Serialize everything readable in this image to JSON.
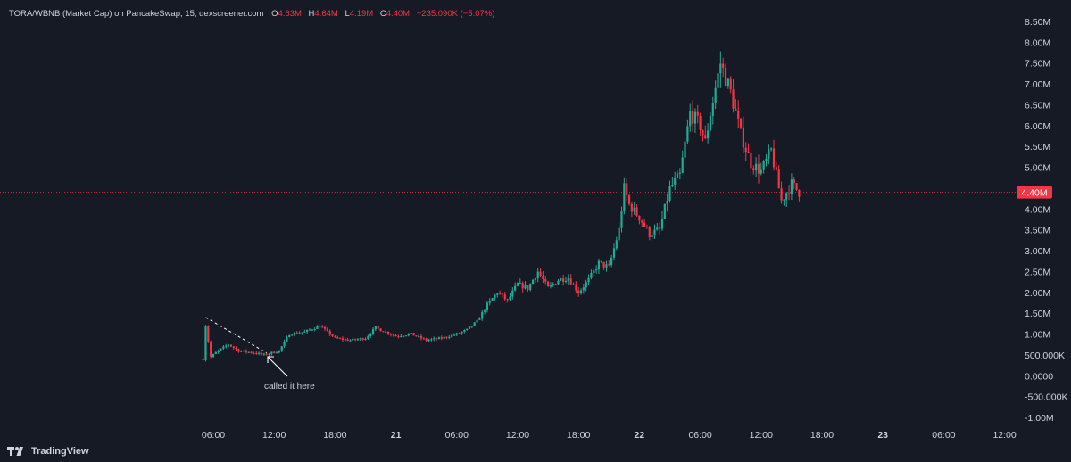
{
  "legend": {
    "symbol": "TORA/WBNB (Market Cap) on PancakeSwap, 15, dexscreener.com",
    "open_key": "O",
    "open": "4.63M",
    "high_key": "H",
    "high": "4.64M",
    "low_key": "L",
    "low": "4.19M",
    "close_key": "C",
    "close": "4.40M",
    "change": "−235.090K (−5.07%)"
  },
  "annotation": {
    "text": "called it here"
  },
  "branding": {
    "label": "TradingView"
  },
  "colors": {
    "background": "#161a25",
    "up": "#22ab94",
    "down": "#f23645",
    "axis_text": "#d1d4dc",
    "price_line": "#f23645"
  },
  "chart_data": {
    "type": "candlestick",
    "title": "",
    "xlabel": "",
    "ylabel": "",
    "ylim": [
      -1000000,
      8500000
    ],
    "grid": false,
    "current_value": 4400000,
    "current_value_label": "4.40M",
    "y_ticks": [
      {
        "value": 8500000,
        "label": "8.50M"
      },
      {
        "value": 8000000,
        "label": "8.00M"
      },
      {
        "value": 7500000,
        "label": "7.50M"
      },
      {
        "value": 7000000,
        "label": "7.00M"
      },
      {
        "value": 6500000,
        "label": "6.50M"
      },
      {
        "value": 6000000,
        "label": "6.00M"
      },
      {
        "value": 5500000,
        "label": "5.50M"
      },
      {
        "value": 5000000,
        "label": "5.00M"
      },
      {
        "value": 4000000,
        "label": "4.00M"
      },
      {
        "value": 3500000,
        "label": "3.50M"
      },
      {
        "value": 3000000,
        "label": "3.00M"
      },
      {
        "value": 2500000,
        "label": "2.50M"
      },
      {
        "value": 2000000,
        "label": "2.00M"
      },
      {
        "value": 1500000,
        "label": "1.50M"
      },
      {
        "value": 1000000,
        "label": "1.00M"
      },
      {
        "value": 500000,
        "label": "500.000K"
      },
      {
        "value": 0,
        "label": "0.0000"
      },
      {
        "value": -500000,
        "label": "-500.000K"
      },
      {
        "value": -1000000,
        "label": "-1.00M"
      }
    ],
    "x_ticks": [
      {
        "label": "06:00",
        "day": false
      },
      {
        "label": "12:00",
        "day": false
      },
      {
        "label": "18:00",
        "day": false
      },
      {
        "label": "21",
        "day": true
      },
      {
        "label": "06:00",
        "day": false
      },
      {
        "label": "12:00",
        "day": false
      },
      {
        "label": "18:00",
        "day": false
      },
      {
        "label": "22",
        "day": true
      },
      {
        "label": "06:00",
        "day": false
      },
      {
        "label": "12:00",
        "day": false
      },
      {
        "label": "18:00",
        "day": false
      },
      {
        "label": "23",
        "day": true
      },
      {
        "label": "06:00",
        "day": false
      },
      {
        "label": "12:00",
        "day": false
      }
    ],
    "interval_minutes": 15,
    "series_anchor_points": [
      {
        "t": "20 05:00",
        "v": 400000
      },
      {
        "t": "20 05:15",
        "v": 1200000
      },
      {
        "t": "20 05:45",
        "v": 450000
      },
      {
        "t": "20 06:30",
        "v": 600000
      },
      {
        "t": "20 07:30",
        "v": 750000
      },
      {
        "t": "20 08:30",
        "v": 600000
      },
      {
        "t": "20 10:00",
        "v": 550000
      },
      {
        "t": "20 11:00",
        "v": 500000
      },
      {
        "t": "20 12:30",
        "v": 600000
      },
      {
        "t": "20 13:30",
        "v": 1000000
      },
      {
        "t": "20 15:00",
        "v": 1050000
      },
      {
        "t": "20 16:30",
        "v": 1200000
      },
      {
        "t": "20 18:00",
        "v": 900000
      },
      {
        "t": "20 19:30",
        "v": 850000
      },
      {
        "t": "20 21:00",
        "v": 900000
      },
      {
        "t": "20 22:00",
        "v": 1150000
      },
      {
        "t": "21 00:00",
        "v": 950000
      },
      {
        "t": "21 01:30",
        "v": 1000000
      },
      {
        "t": "21 03:00",
        "v": 850000
      },
      {
        "t": "21 04:30",
        "v": 900000
      },
      {
        "t": "21 06:00",
        "v": 1000000
      },
      {
        "t": "21 07:00",
        "v": 1100000
      },
      {
        "t": "21 08:00",
        "v": 1300000
      },
      {
        "t": "21 09:00",
        "v": 1700000
      },
      {
        "t": "21 10:00",
        "v": 2000000
      },
      {
        "t": "21 11:00",
        "v": 1800000
      },
      {
        "t": "21 12:00",
        "v": 2200000
      },
      {
        "t": "21 13:00",
        "v": 2100000
      },
      {
        "t": "21 14:00",
        "v": 2500000
      },
      {
        "t": "21 15:00",
        "v": 2100000
      },
      {
        "t": "21 16:00",
        "v": 2300000
      },
      {
        "t": "21 17:00",
        "v": 2350000
      },
      {
        "t": "21 18:00",
        "v": 2000000
      },
      {
        "t": "21 19:00",
        "v": 2300000
      },
      {
        "t": "21 20:00",
        "v": 2700000
      },
      {
        "t": "21 21:00",
        "v": 2600000
      },
      {
        "t": "21 22:00",
        "v": 3500000
      },
      {
        "t": "21 22:30",
        "v": 4500000
      },
      {
        "t": "21 23:00",
        "v": 4100000
      },
      {
        "t": "22 00:00",
        "v": 3800000
      },
      {
        "t": "22 01:00",
        "v": 3400000
      },
      {
        "t": "22 02:00",
        "v": 3500000
      },
      {
        "t": "22 03:00",
        "v": 4500000
      },
      {
        "t": "22 04:00",
        "v": 4800000
      },
      {
        "t": "22 05:00",
        "v": 6300000
      },
      {
        "t": "22 06:00",
        "v": 6000000
      },
      {
        "t": "22 06:30",
        "v": 5600000
      },
      {
        "t": "22 07:00",
        "v": 6300000
      },
      {
        "t": "22 08:00",
        "v": 7500000
      },
      {
        "t": "22 09:00",
        "v": 6800000
      },
      {
        "t": "22 10:00",
        "v": 5800000
      },
      {
        "t": "22 11:00",
        "v": 5100000
      },
      {
        "t": "22 12:00",
        "v": 4900000
      },
      {
        "t": "22 13:00",
        "v": 5400000
      },
      {
        "t": "22 14:00",
        "v": 4200000
      },
      {
        "t": "22 15:00",
        "v": 4600000
      },
      {
        "t": "22 15:45",
        "v": 4400000
      }
    ]
  }
}
